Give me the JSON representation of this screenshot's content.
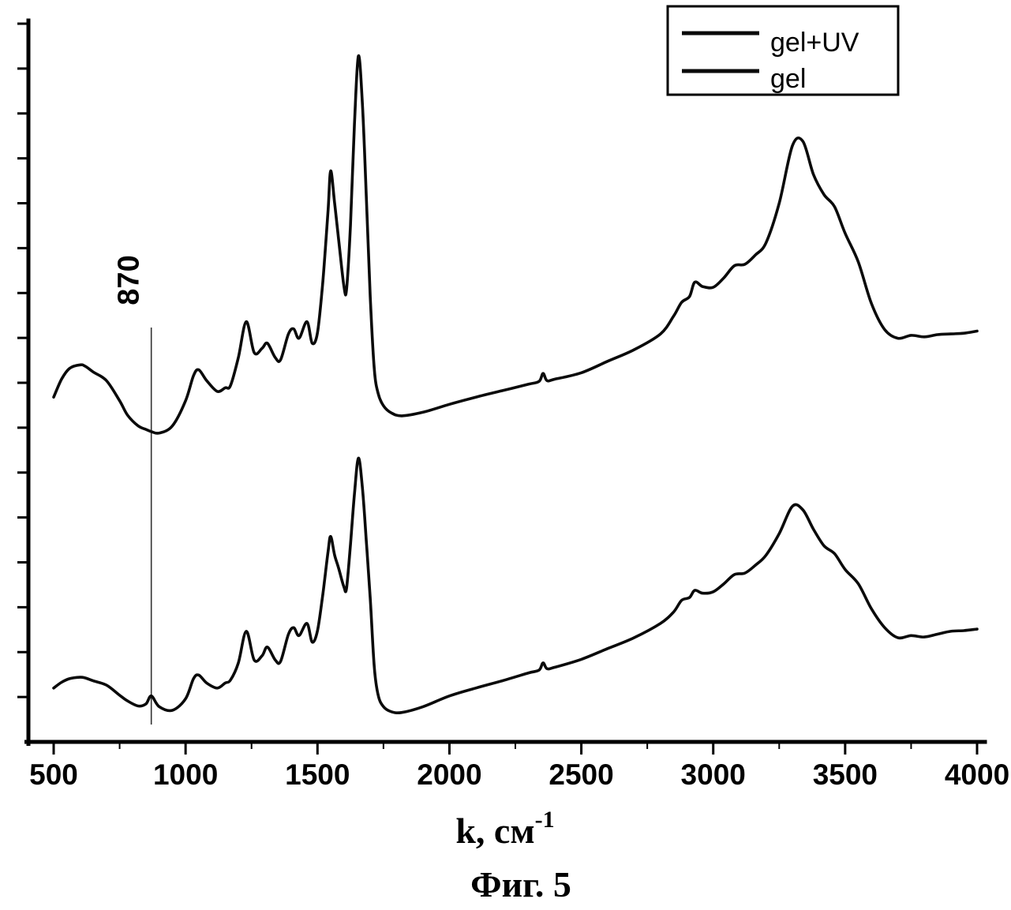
{
  "figure": {
    "caption": "Фиг. 5"
  },
  "chart_data": {
    "type": "line",
    "title": "",
    "xlabel": "k, см⁻¹",
    "xlabel_parts": {
      "base": "k, см",
      "sup": "-1"
    },
    "ylabel": "",
    "xlim": [
      500,
      4000
    ],
    "ylim": [
      0,
      100
    ],
    "x_ticks": [
      500,
      1000,
      1500,
      2000,
      2500,
      3000,
      3500,
      4000
    ],
    "y_ticks_labeled": false,
    "grid": false,
    "legend_position": "top-right",
    "line_color": "#0a0a0a",
    "annotations": [
      {
        "text": "870",
        "x": 870,
        "rotation": -90
      }
    ],
    "x": [
      500,
      530,
      560,
      600,
      620,
      650,
      700,
      750,
      780,
      820,
      850,
      870,
      900,
      950,
      1000,
      1030,
      1050,
      1080,
      1120,
      1150,
      1170,
      1200,
      1230,
      1260,
      1290,
      1310,
      1340,
      1360,
      1390,
      1410,
      1430,
      1460,
      1480,
      1500,
      1520,
      1540,
      1550,
      1565,
      1580,
      1600,
      1610,
      1625,
      1640,
      1655,
      1670,
      1685,
      1700,
      1715,
      1730,
      1750,
      1780,
      1820,
      1900,
      2000,
      2100,
      2200,
      2300,
      2340,
      2355,
      2370,
      2400,
      2500,
      2600,
      2700,
      2800,
      2850,
      2880,
      2910,
      2930,
      2960,
      3000,
      3040,
      3080,
      3120,
      3160,
      3200,
      3250,
      3300,
      3340,
      3380,
      3420,
      3460,
      3500,
      3550,
      3600,
      3650,
      3700,
      3750,
      3800,
      3850,
      3900,
      3950,
      4000
    ],
    "series": [
      {
        "name": "gel+UV",
        "values": [
          48.0,
          50.5,
          52.0,
          52.5,
          52.3,
          51.5,
          50.3,
          47.5,
          45.5,
          44.0,
          43.5,
          43.2,
          43.0,
          44.0,
          47.5,
          51.0,
          51.8,
          50.3,
          48.8,
          49.3,
          49.6,
          53.5,
          58.5,
          54.2,
          54.8,
          55.5,
          53.5,
          53.2,
          56.8,
          57.5,
          56.2,
          58.5,
          55.5,
          57.0,
          64.0,
          74.0,
          79.5,
          75.0,
          70.0,
          63.5,
          63.0,
          72.0,
          86.0,
          95.5,
          89.0,
          76.0,
          62.0,
          52.0,
          48.5,
          46.8,
          45.8,
          45.4,
          45.9,
          47.0,
          48.0,
          48.9,
          49.8,
          50.2,
          51.3,
          50.3,
          50.5,
          51.4,
          53.0,
          54.6,
          56.8,
          59.3,
          61.2,
          62.0,
          64.0,
          63.4,
          63.3,
          64.6,
          66.3,
          66.5,
          67.8,
          69.5,
          75.0,
          83.0,
          83.6,
          79.0,
          76.2,
          74.5,
          70.8,
          66.8,
          61.0,
          57.4,
          56.2,
          56.6,
          56.4,
          56.7,
          56.8,
          56.9,
          57.2
        ]
      },
      {
        "name": "gel",
        "values": [
          7.5,
          8.3,
          8.8,
          9.0,
          8.9,
          8.5,
          7.9,
          6.5,
          5.7,
          5.0,
          5.3,
          6.4,
          4.9,
          4.4,
          6.0,
          8.8,
          9.3,
          8.2,
          7.5,
          8.2,
          8.6,
          11.0,
          15.4,
          11.4,
          12.0,
          13.2,
          11.4,
          11.2,
          15.0,
          15.9,
          14.8,
          16.5,
          13.9,
          15.5,
          20.5,
          26.5,
          28.6,
          26.0,
          24.2,
          21.6,
          21.4,
          27.5,
          34.5,
          39.5,
          35.5,
          28.0,
          20.0,
          10.5,
          6.5,
          4.9,
          4.2,
          4.1,
          4.9,
          6.4,
          7.5,
          8.5,
          9.6,
          10.0,
          11.0,
          10.2,
          10.4,
          11.5,
          13.0,
          14.5,
          16.5,
          18.1,
          19.7,
          20.1,
          21.1,
          20.7,
          20.9,
          22.0,
          23.3,
          23.5,
          24.6,
          26.0,
          29.0,
          32.8,
          32.3,
          29.6,
          27.3,
          26.2,
          24.0,
          22.0,
          18.5,
          15.9,
          14.5,
          14.8,
          14.6,
          15.0,
          15.4,
          15.5,
          15.7
        ]
      }
    ]
  }
}
